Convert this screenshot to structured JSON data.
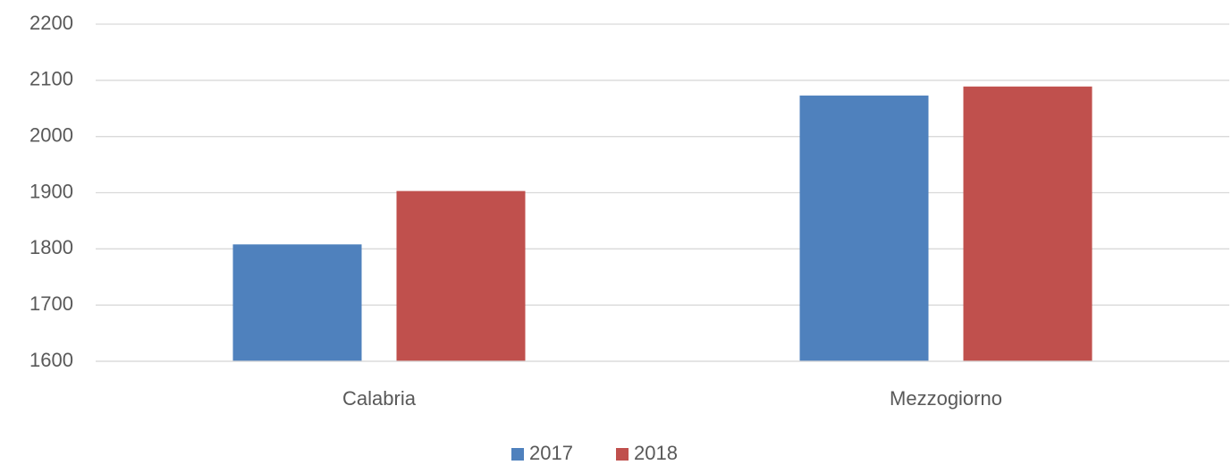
{
  "chart_data": {
    "type": "bar",
    "categories": [
      "Calabria",
      "Mezzogiorno"
    ],
    "series": [
      {
        "name": "2017",
        "color": "#4f81bd",
        "values": [
          1808,
          2073
        ]
      },
      {
        "name": "2018",
        "color": "#c0504d",
        "values": [
          1903,
          2089
        ]
      }
    ],
    "ylim": [
      1600,
      2200
    ],
    "yticks": [
      1600,
      1700,
      1800,
      1900,
      2000,
      2100,
      2200
    ],
    "grid": true,
    "legend": "bottom"
  }
}
